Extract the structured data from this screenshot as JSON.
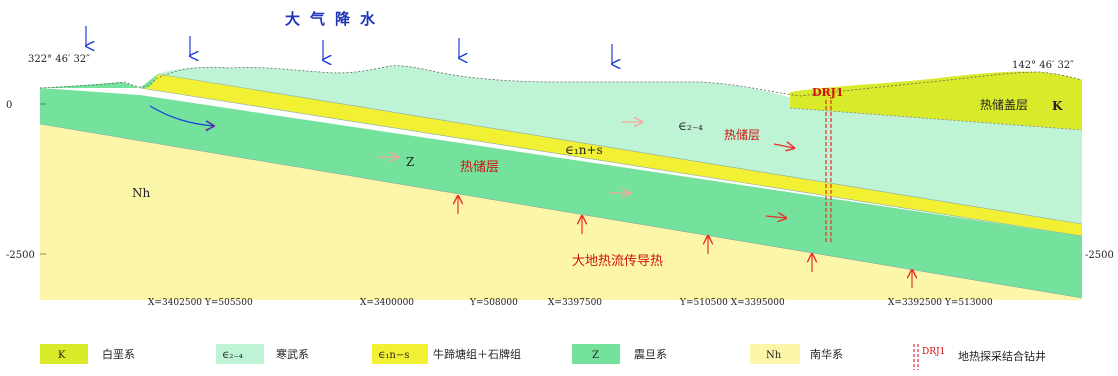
{
  "title": "大气降水",
  "corners": {
    "left_coord": "322° 46′ 32″",
    "right_coord": "142° 46′ 32″"
  },
  "depth_ticks": {
    "top_left": "0",
    "top_right": "",
    "bottom_left": "-2500",
    "bottom_right": "-2500"
  },
  "borehole_label": "DRJ1",
  "layer_labels": {
    "cambrian": "∈₂₋₄",
    "niu_shi": "∈₁n+s",
    "sinian": "Z",
    "nanhua": "Nh",
    "cretaceous": "K"
  },
  "annotations": {
    "reservoir_upper": "热储层",
    "reservoir_lower": "热储层",
    "caprock": "热储盖层",
    "heat_flow": "大地热流传导热"
  },
  "coordinates": [
    "X=3402500  Y=505500",
    "X=3400000",
    "Y=508000",
    "X=3397500",
    "Y=510500  X=3395000",
    "X=3392500  Y=513000"
  ],
  "legend": [
    {
      "code": "K",
      "name": "白垩系",
      "color": "#d8ea2a"
    },
    {
      "code": "∈₂₋₄",
      "name": "寒武系",
      "color": "#bff3d6"
    },
    {
      "code": "∈₁n−s",
      "name": "牛蹄塘组＋石牌组",
      "color": "#f2f032"
    },
    {
      "code": "Z",
      "name": "震旦系",
      "color": "#74e29c"
    },
    {
      "code": "Nh",
      "name": "南华系",
      "color": "#fcf7a8"
    },
    {
      "code": "DRJ1",
      "name": "地热探采结合钻井",
      "color": "#e8302a"
    }
  ],
  "colors": {
    "blue_arrow": "#1a3fd8",
    "red_arrow": "#e8302a",
    "pink_arrow": "#f4a8a0",
    "text_red": "#d01010",
    "title_blue": "#1f33b8"
  }
}
